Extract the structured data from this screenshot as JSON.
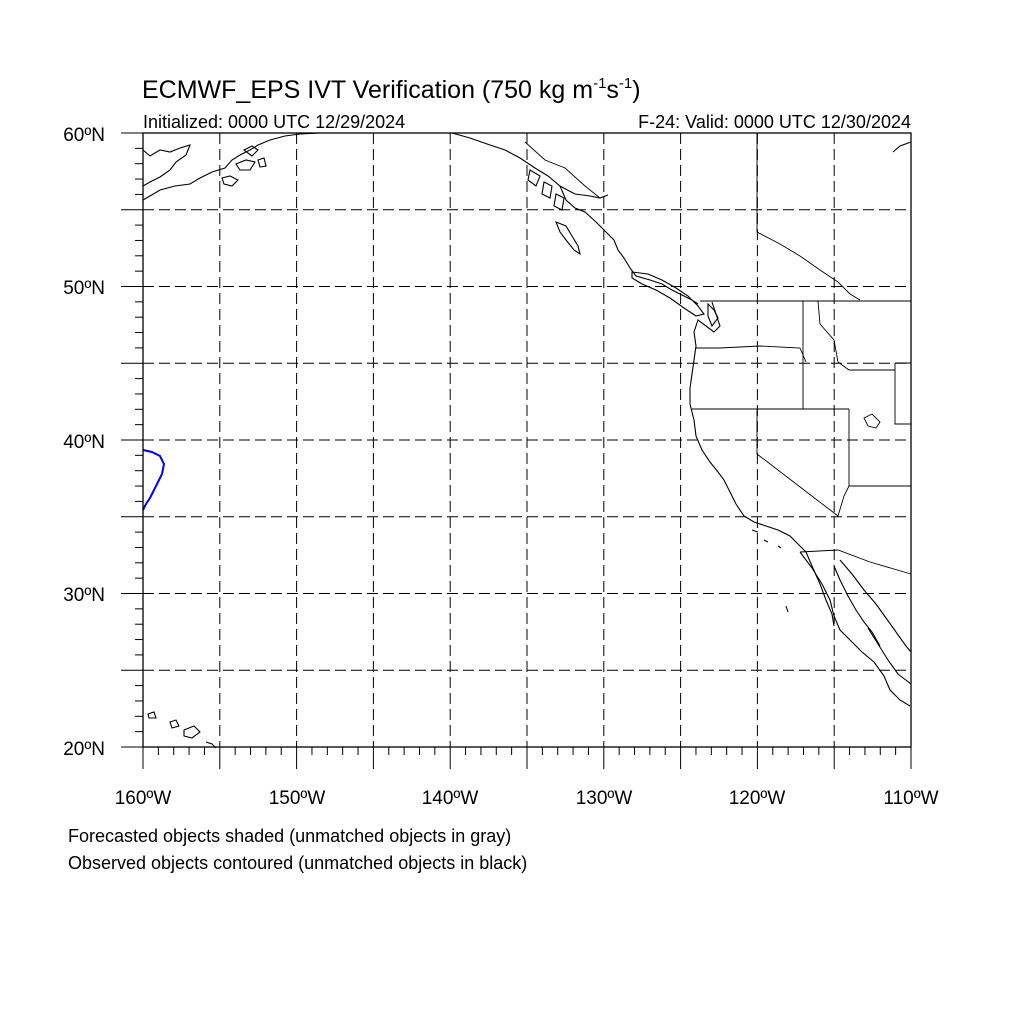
{
  "title": {
    "main": "ECMWF_EPS IVT Verification (750 kg m",
    "exp1": "-1",
    "mid": "s",
    "exp2": "-1",
    "close": ")"
  },
  "subtitle_left": "Initialized: 0000 UTC 12/29/2024",
  "subtitle_right": "F-24: Valid: 0000 UTC 12/30/2024",
  "map": {
    "lon_range": [
      -160,
      -110
    ],
    "lat_range": [
      20,
      60
    ],
    "gridlines": "dashed",
    "lat_labels": [
      "20ºN",
      "30ºN",
      "40ºN",
      "50ºN",
      "60ºN"
    ],
    "lon_labels": [
      "160ºW",
      "150ºW",
      "140ºW",
      "130ºW",
      "120ºW",
      "110ºW"
    ],
    "coastline_color": "#000000",
    "observed_object_color": "#0000ff"
  },
  "legend": {
    "line1": "Forecasted objects shaded (unmatched objects in gray)",
    "line2": "Observed objects contoured (unmatched objects in black)"
  }
}
